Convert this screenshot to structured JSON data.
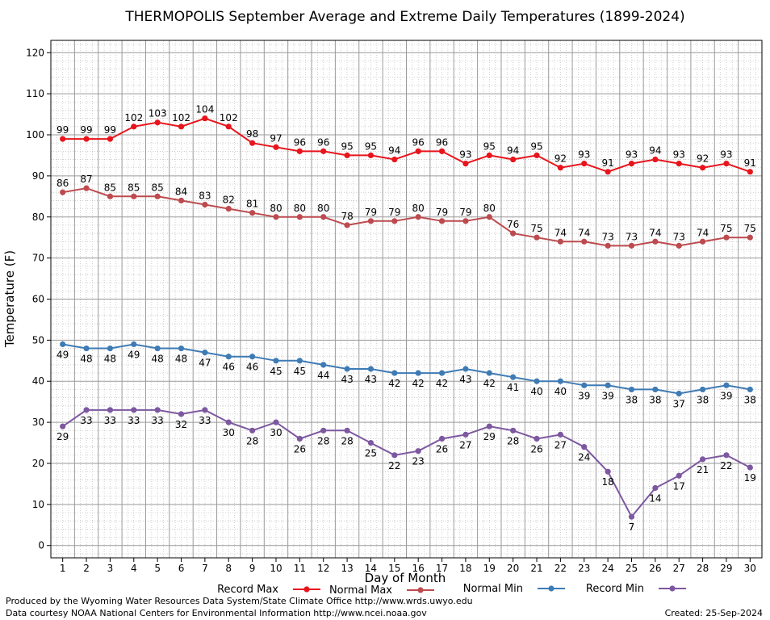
{
  "chart_data": {
    "type": "line",
    "title": "THERMOPOLIS September Average and Extreme Daily Temperatures (1899-2024)",
    "xlabel": "Day of Month",
    "ylabel": "Temperature (F)",
    "ylim": [
      -3,
      123
    ],
    "yticks": [
      0,
      10,
      20,
      30,
      40,
      50,
      60,
      70,
      80,
      90,
      100,
      110,
      120
    ],
    "x": [
      1,
      2,
      3,
      4,
      5,
      6,
      7,
      8,
      9,
      10,
      11,
      12,
      13,
      14,
      15,
      16,
      17,
      18,
      19,
      20,
      21,
      22,
      23,
      24,
      25,
      26,
      27,
      28,
      29,
      30
    ],
    "grid": true,
    "legend_position": "bottom",
    "series": [
      {
        "name": "Record Max",
        "color": "#e8141c",
        "label_position": "above",
        "values": [
          99,
          99,
          99,
          102,
          103,
          102,
          104,
          102,
          98,
          97,
          96,
          96,
          95,
          95,
          94,
          96,
          96,
          93,
          95,
          94,
          95,
          92,
          93,
          91,
          93,
          94,
          93,
          92,
          93,
          91
        ]
      },
      {
        "name": "Normal Max",
        "color": "#bd4a4e",
        "label_position": "above",
        "values": [
          86,
          87,
          85,
          85,
          85,
          84,
          83,
          82,
          81,
          80,
          80,
          80,
          78,
          79,
          79,
          80,
          79,
          79,
          80,
          76,
          75,
          74,
          74,
          73,
          73,
          74,
          73,
          74,
          75,
          75
        ]
      },
      {
        "name": "Normal Min",
        "color": "#3e7bb5",
        "label_position": "below",
        "values": [
          49,
          48,
          48,
          49,
          48,
          48,
          47,
          46,
          46,
          45,
          45,
          44,
          43,
          43,
          42,
          42,
          42,
          43,
          42,
          41,
          40,
          40,
          39,
          39,
          38,
          38,
          37,
          38,
          39,
          38
        ]
      },
      {
        "name": "Record Min",
        "color": "#7d58a0",
        "label_position": "below",
        "values": [
          29,
          33,
          33,
          33,
          33,
          32,
          33,
          30,
          28,
          30,
          26,
          28,
          28,
          25,
          22,
          23,
          26,
          27,
          29,
          28,
          26,
          27,
          24,
          18,
          7,
          14,
          17,
          21,
          22,
          19
        ]
      }
    ]
  },
  "footer": {
    "produced_by": "Produced by the Wyoming Water Resources Data System/State Climate Office http://www.wrds.uwyo.edu",
    "data_courtesy": "Data courtesy NOAA National Centers for Environmental Information http://www.ncei.noaa.gov",
    "created": "Created:  25-Sep-2024"
  }
}
